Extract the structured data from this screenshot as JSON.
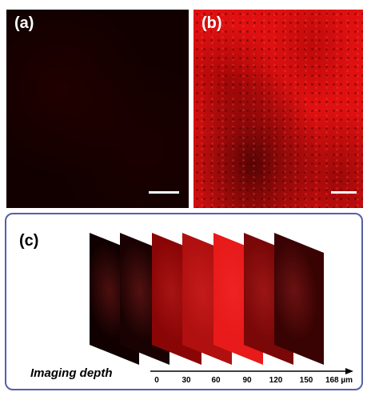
{
  "panels": {
    "a": {
      "label": "(a)"
    },
    "b": {
      "label": "(b)"
    },
    "c": {
      "label": "(c)"
    }
  },
  "depth_axis": {
    "caption": "Imaging depth",
    "ticks": [
      "0",
      "30",
      "60",
      "90",
      "120",
      "150",
      "168 µm"
    ]
  },
  "slice_colors": [
    "#110000",
    "#1a0202",
    "#8a0606",
    "#b01010",
    "#e81a1a",
    "#7a0808",
    "#3a0303"
  ]
}
